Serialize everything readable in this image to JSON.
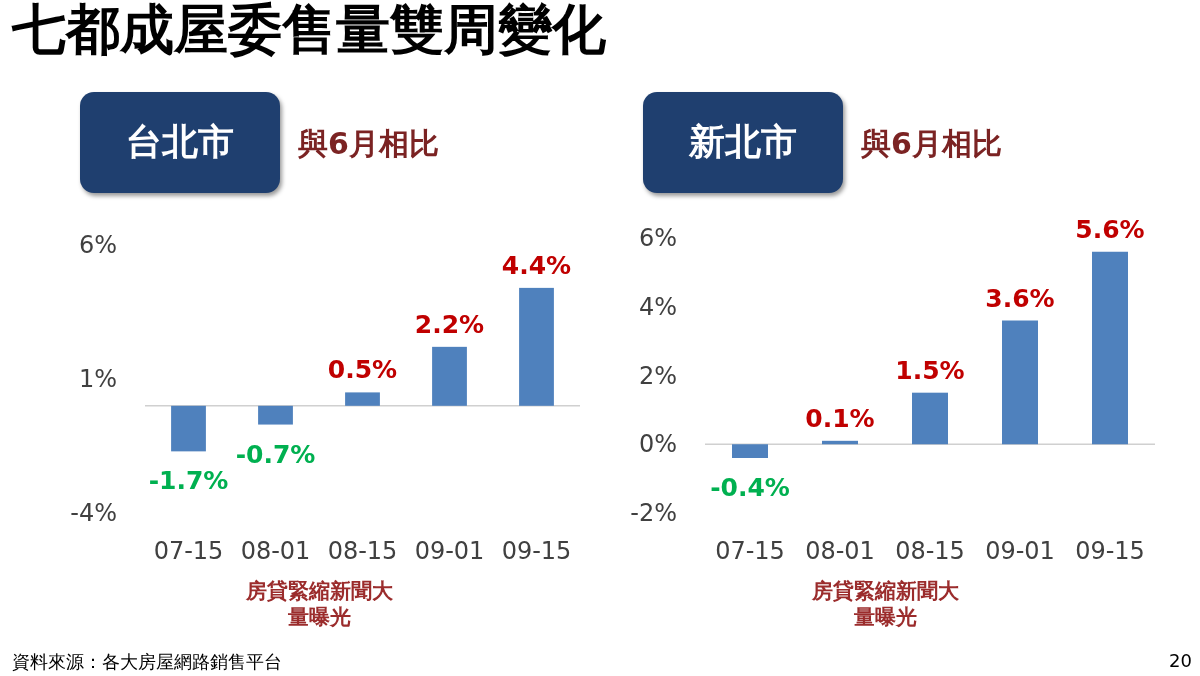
{
  "chart_data": [
    {
      "type": "other",
      "title": "七都成屋委售量雙周變化",
      "annotations": [
        "資料來源：各大房屋網路銷售平台",
        "20"
      ]
    },
    {
      "type": "bar",
      "title": "台北市",
      "subtitle": "與6月相比",
      "categories": [
        "07-15",
        "08-01",
        "08-15",
        "09-01",
        "09-15"
      ],
      "values": [
        -1.7,
        -0.7,
        0.5,
        2.2,
        4.4
      ],
      "value_labels": [
        "-1.7%",
        "-0.7%",
        "0.5%",
        "2.2%",
        "4.4%"
      ],
      "color": "#4f81bd",
      "ylim": [
        -4,
        6
      ],
      "yticks": [
        {
          "value": -4,
          "label": "-4%"
        },
        {
          "value": 1,
          "label": "1%"
        },
        {
          "value": 6,
          "label": "6%"
        }
      ],
      "annotations": [
        "房貸緊縮新聞大量曝光"
      ]
    },
    {
      "type": "bar",
      "title": "新北市",
      "subtitle": "與6月相比",
      "categories": [
        "07-15",
        "08-01",
        "08-15",
        "09-01",
        "09-15"
      ],
      "values": [
        -0.4,
        0.1,
        1.5,
        3.6,
        5.6
      ],
      "value_labels": [
        "-0.4%",
        "0.1%",
        "1.5%",
        "3.6%",
        "5.6%"
      ],
      "color": "#4f81bd",
      "ylim": [
        -2,
        6
      ],
      "yticks": [
        {
          "value": -2,
          "label": "-2%"
        },
        {
          "value": 0,
          "label": "0%"
        },
        {
          "value": 2,
          "label": "2%"
        },
        {
          "value": 4,
          "label": "4%"
        },
        {
          "value": 6,
          "label": "6%"
        }
      ],
      "annotations": [
        "房貸緊縮新聞大量曝光"
      ]
    }
  ]
}
